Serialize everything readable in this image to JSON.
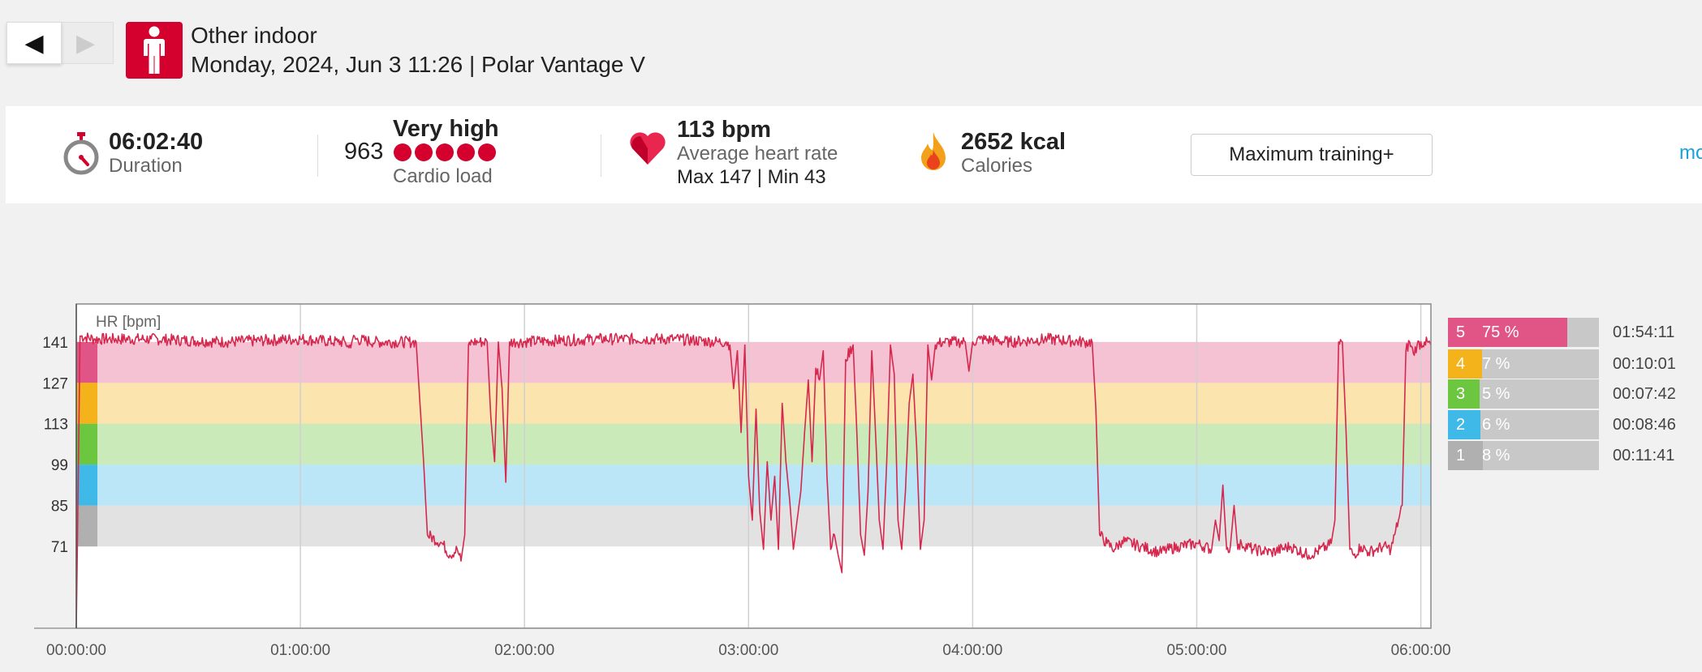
{
  "nav": {
    "prev_icon": "◀",
    "next_icon": "▶"
  },
  "header": {
    "sport_icon": "person-standing-icon",
    "sport": "Other indoor",
    "meta": "Monday, 2024, Jun 3 11:26 | Polar Vantage V"
  },
  "summary": {
    "duration": {
      "value": "06:02:40",
      "label": "Duration",
      "icon": "stopwatch-icon"
    },
    "cardio": {
      "value": "963",
      "level": "Very high",
      "dots": 5,
      "label": "Cardio load"
    },
    "heart_rate": {
      "value": "113 bpm",
      "label": "Average heart rate",
      "maxmin": "Max 147  |  Min 43",
      "icon": "heart-icon"
    },
    "calories": {
      "value": "2652 kcal",
      "label": "Calories",
      "icon": "flame-icon"
    },
    "benefit_button": "Maximum training+",
    "more_link": "mo"
  },
  "colors": {
    "accent": "#d4002d",
    "line": "#d6284e",
    "link": "#1aa0dc"
  },
  "chart_data": {
    "type": "line",
    "axis_label": "HR [bpm]",
    "ylabel": "HR [bpm]",
    "x_unit": "elapsed time",
    "x_ticks": [
      "00:00:00",
      "01:00:00",
      "02:00:00",
      "03:00:00",
      "04:00:00",
      "05:00:00",
      "06:00:00"
    ],
    "y_ticks": [
      141,
      127,
      113,
      99,
      85,
      71
    ],
    "ylim": [
      43,
      154
    ],
    "xlim_minutes": [
      0,
      362.7
    ],
    "grid": "vertical",
    "zones": [
      {
        "zone": "5",
        "from": 127,
        "to": 141,
        "color": "#e05586",
        "pct": "75 %",
        "pct_value": 75,
        "time": "01:54:11"
      },
      {
        "zone": "4",
        "from": 113,
        "to": 127,
        "color": "#f5b31b",
        "pct": "7 %",
        "pct_value": 7,
        "time": "00:10:01"
      },
      {
        "zone": "3",
        "from": 99,
        "to": 113,
        "color": "#6cc63f",
        "pct": "5 %",
        "pct_value": 5,
        "time": "00:07:42"
      },
      {
        "zone": "2",
        "from": 85,
        "to": 99,
        "color": "#3fb9e8",
        "pct": "6 %",
        "pct_value": 6,
        "time": "00:08:46"
      },
      {
        "zone": "1",
        "from": 71,
        "to": 85,
        "color": "#b0b0b0",
        "pct": "8 %",
        "pct_value": 8,
        "time": "00:11:41"
      }
    ],
    "series": [
      {
        "values_minutes_bpm": [
          [
            0,
            43
          ],
          [
            1,
            143
          ],
          [
            5,
            142
          ],
          [
            20,
            142
          ],
          [
            40,
            141
          ],
          [
            60,
            142
          ],
          [
            70,
            141
          ],
          [
            72,
            141
          ],
          [
            73,
            139
          ],
          [
            74,
            142
          ],
          [
            80,
            141
          ],
          [
            90,
            141
          ],
          [
            91,
            141
          ],
          [
            93,
            100
          ],
          [
            94,
            75
          ],
          [
            98,
            72
          ],
          [
            100,
            68
          ],
          [
            102,
            70
          ],
          [
            103,
            66
          ],
          [
            104,
            75
          ],
          [
            105,
            140
          ],
          [
            106,
            141
          ],
          [
            108,
            141
          ],
          [
            110,
            141
          ],
          [
            111,
            115
          ],
          [
            112,
            100
          ],
          [
            113,
            141
          ],
          [
            114,
            125
          ],
          [
            115,
            93
          ],
          [
            116,
            141
          ],
          [
            118,
            141
          ],
          [
            140,
            142
          ],
          [
            160,
            142
          ],
          [
            172,
            141
          ],
          [
            174,
            141
          ],
          [
            175,
            140
          ],
          [
            176,
            125
          ],
          [
            177,
            138
          ],
          [
            178,
            110
          ],
          [
            179,
            140
          ],
          [
            180,
            95
          ],
          [
            181,
            80
          ],
          [
            182,
            118
          ],
          [
            183,
            83
          ],
          [
            184,
            70
          ],
          [
            185,
            100
          ],
          [
            186,
            80
          ],
          [
            187,
            95
          ],
          [
            188,
            70
          ],
          [
            189,
            120
          ],
          [
            190,
            100
          ],
          [
            191,
            87
          ],
          [
            192,
            70
          ],
          [
            193,
            80
          ],
          [
            194,
            90
          ],
          [
            195,
            110
          ],
          [
            196,
            128
          ],
          [
            197,
            100
          ],
          [
            198,
            132
          ],
          [
            199,
            128
          ],
          [
            200,
            138
          ],
          [
            201,
            95
          ],
          [
            202,
            70
          ],
          [
            203,
            75
          ],
          [
            204,
            68
          ],
          [
            205,
            62
          ],
          [
            206,
            135
          ],
          [
            208,
            140
          ],
          [
            209,
            110
          ],
          [
            210,
            75
          ],
          [
            211,
            68
          ],
          [
            212,
            90
          ],
          [
            213,
            138
          ],
          [
            214,
            110
          ],
          [
            215,
            80
          ],
          [
            216,
            70
          ],
          [
            217,
            100
          ],
          [
            218,
            140
          ],
          [
            219,
            130
          ],
          [
            220,
            80
          ],
          [
            221,
            70
          ],
          [
            222,
            90
          ],
          [
            223,
            120
          ],
          [
            224,
            130
          ],
          [
            225,
            105
          ],
          [
            226,
            70
          ],
          [
            227,
            80
          ],
          [
            228,
            140
          ],
          [
            229,
            128
          ],
          [
            230,
            140
          ],
          [
            232,
            141
          ],
          [
            236,
            141
          ],
          [
            238,
            141
          ],
          [
            239,
            131
          ],
          [
            240,
            141
          ],
          [
            242,
            142
          ],
          [
            250,
            141
          ],
          [
            260,
            142
          ],
          [
            270,
            141
          ],
          [
            272,
            141
          ],
          [
            273,
            118
          ],
          [
            274,
            75
          ],
          [
            276,
            72
          ],
          [
            278,
            70
          ],
          [
            280,
            73
          ],
          [
            285,
            71
          ],
          [
            290,
            69
          ],
          [
            295,
            71
          ],
          [
            300,
            72
          ],
          [
            304,
            70
          ],
          [
            305,
            80
          ],
          [
            306,
            73
          ],
          [
            307,
            92
          ],
          [
            308,
            70
          ],
          [
            309,
            71
          ],
          [
            310,
            85
          ],
          [
            311,
            70
          ],
          [
            312,
            72
          ],
          [
            315,
            70
          ],
          [
            320,
            69
          ],
          [
            325,
            71
          ],
          [
            330,
            68
          ],
          [
            335,
            71
          ],
          [
            336,
            72
          ],
          [
            337,
            80
          ],
          [
            338,
            141
          ],
          [
            339,
            141
          ],
          [
            340,
            110
          ],
          [
            341,
            70
          ],
          [
            342,
            68
          ],
          [
            344,
            71
          ],
          [
            346,
            69
          ],
          [
            348,
            70
          ],
          [
            350,
            71
          ],
          [
            352,
            70
          ],
          [
            353,
            75
          ],
          [
            354,
            80
          ],
          [
            355,
            85
          ],
          [
            356,
            138
          ],
          [
            357,
            141
          ],
          [
            358,
            137
          ],
          [
            359,
            140
          ],
          [
            361,
            141
          ],
          [
            362.7,
            140
          ]
        ]
      }
    ]
  }
}
